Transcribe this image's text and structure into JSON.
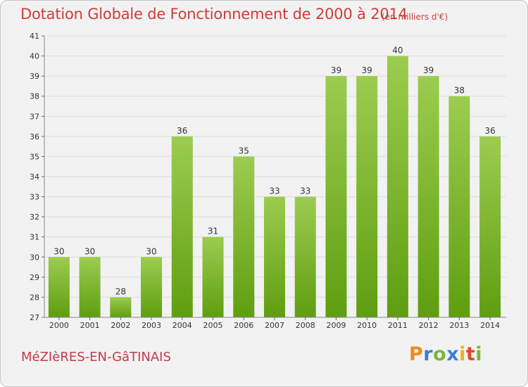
{
  "title": "Dotation Globale de Fonctionnement de 2000 à 2014",
  "subtitle": "(en milliers d'€)",
  "commune": "MéZIèRES-EN-GâTINAIS",
  "logo_text": "Proxiti",
  "colors": {
    "title": "#d23a3a",
    "bar_light": "#9ccc50",
    "bar_dark": "#5f9e10",
    "grid": "#dddddd",
    "background": "#f2f2f2"
  },
  "chart_data": {
    "type": "bar",
    "categories": [
      "2000",
      "2001",
      "2002",
      "2003",
      "2004",
      "2005",
      "2006",
      "2007",
      "2008",
      "2009",
      "2010",
      "2011",
      "2012",
      "2013",
      "2014"
    ],
    "values": [
      30,
      30,
      28,
      30,
      36,
      31,
      35,
      33,
      33,
      39,
      39,
      40,
      39,
      38,
      36
    ],
    "data_labels": [
      "30",
      "30",
      "28",
      "30",
      "36",
      "31",
      "35",
      "33",
      "33",
      "39",
      "39",
      "40",
      "39",
      "38",
      "36"
    ],
    "yticks": [
      "27",
      "28",
      "29",
      "30",
      "31",
      "32",
      "33",
      "34",
      "35",
      "36",
      "37",
      "38",
      "39",
      "40",
      "41"
    ],
    "ylim": [
      27,
      41
    ],
    "grid": true,
    "legend": "none"
  }
}
